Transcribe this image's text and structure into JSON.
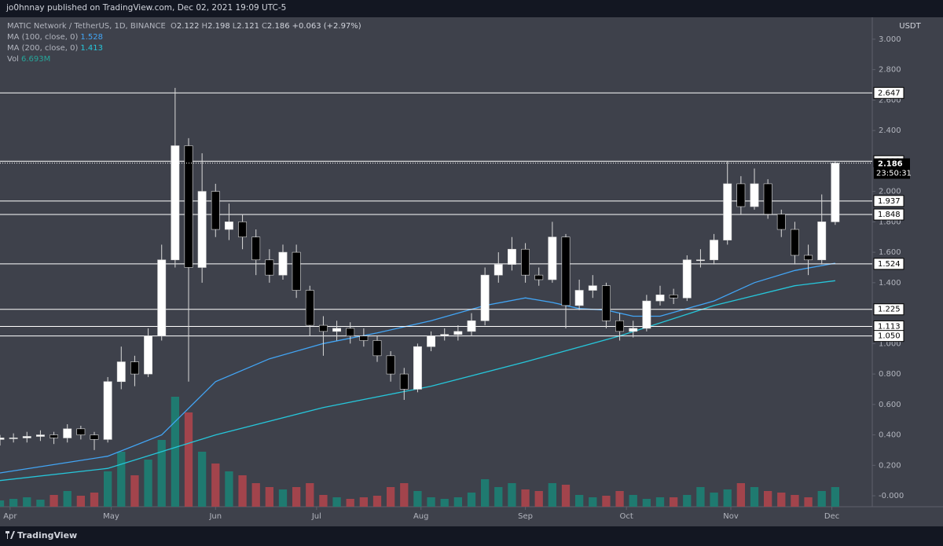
{
  "header": {
    "text": "jo0hnnay published on TradingView.com, Dec 02, 2021 19:09 UTC-5"
  },
  "legend": {
    "symbol": "MATIC Network / TetherUS, 1D, BINANCE",
    "ohlc": [
      {
        "key": "O",
        "value": "2.122"
      },
      {
        "key": "H",
        "value": "2.198"
      },
      {
        "key": "L",
        "value": "2.121"
      },
      {
        "key": "C",
        "value": "2.186"
      }
    ],
    "change": "+0.063 (+2.97%)",
    "indicators": [
      {
        "label": "MA (100, close, 0)",
        "value": "1.528",
        "color": "#42a5f5"
      },
      {
        "label": "MA (200, close, 0)",
        "value": "1.413",
        "color": "#26c6da"
      },
      {
        "label": "Vol",
        "value": "6.693M",
        "color": "#26a69a"
      }
    ]
  },
  "chart_data": {
    "type": "candlestick",
    "currency": "USDT",
    "x": [
      -3,
      1,
      5,
      9,
      13,
      17,
      21,
      25,
      29,
      33,
      37,
      41,
      45,
      49,
      53,
      57,
      61,
      65,
      69,
      73,
      77,
      81,
      85,
      89,
      93,
      97,
      101,
      105,
      109,
      113,
      117,
      121,
      125,
      129,
      133,
      137,
      141,
      145,
      149,
      153,
      157,
      161,
      165,
      169,
      173,
      177,
      181,
      185,
      189,
      193,
      197,
      201,
      205,
      209,
      213,
      217,
      221,
      225,
      229,
      233,
      237,
      241,
      245
    ],
    "open": [
      0.37,
      0.38,
      0.38,
      0.39,
      0.4,
      0.38,
      0.44,
      0.4,
      0.37,
      0.75,
      0.88,
      0.8,
      1.05,
      1.55,
      2.3,
      1.5,
      2.0,
      1.75,
      1.8,
      1.7,
      1.55,
      1.45,
      1.6,
      1.35,
      1.12,
      1.08,
      1.1,
      1.05,
      1.02,
      0.92,
      0.8,
      0.7,
      0.98,
      1.05,
      1.06,
      1.08,
      1.15,
      1.45,
      1.52,
      1.62,
      1.45,
      1.42,
      1.7,
      1.25,
      1.35,
      1.38,
      1.15,
      1.08,
      1.1,
      1.28,
      1.32,
      1.3,
      1.55,
      1.55,
      1.68,
      2.05,
      1.9,
      2.05,
      1.85,
      1.75,
      1.58,
      1.55,
      1.8
    ],
    "high": [
      0.4,
      0.41,
      0.42,
      0.43,
      0.42,
      0.47,
      0.46,
      0.42,
      0.78,
      0.98,
      0.92,
      1.1,
      1.65,
      2.68,
      2.35,
      2.25,
      2.05,
      1.92,
      1.85,
      1.75,
      1.62,
      1.65,
      1.65,
      1.38,
      1.18,
      1.15,
      1.14,
      1.1,
      1.05,
      0.95,
      0.84,
      1.0,
      1.08,
      1.1,
      1.12,
      1.2,
      1.5,
      1.6,
      1.7,
      1.66,
      1.5,
      1.8,
      1.72,
      1.42,
      1.45,
      1.4,
      1.2,
      1.15,
      1.32,
      1.38,
      1.36,
      1.58,
      1.62,
      1.72,
      2.2,
      2.1,
      2.15,
      2.08,
      1.88,
      1.8,
      1.65,
      1.98,
      2.198
    ],
    "low": [
      0.33,
      0.35,
      0.35,
      0.36,
      0.34,
      0.35,
      0.37,
      0.3,
      0.35,
      0.7,
      0.72,
      0.78,
      1.02,
      1.5,
      0.75,
      1.4,
      1.7,
      1.68,
      1.62,
      1.45,
      1.4,
      1.42,
      1.3,
      1.05,
      0.92,
      1.02,
      1.0,
      0.98,
      0.88,
      0.75,
      0.63,
      0.68,
      0.95,
      1.02,
      1.02,
      1.05,
      1.12,
      1.4,
      1.48,
      1.4,
      1.38,
      1.4,
      1.1,
      1.22,
      1.3,
      1.1,
      1.02,
      1.04,
      1.08,
      1.25,
      1.26,
      1.28,
      1.5,
      1.52,
      1.65,
      1.85,
      1.88,
      1.82,
      1.7,
      1.52,
      1.45,
      1.52,
      1.78
    ],
    "close": [
      0.38,
      0.38,
      0.39,
      0.4,
      0.38,
      0.44,
      0.4,
      0.37,
      0.75,
      0.88,
      0.8,
      1.05,
      1.55,
      2.3,
      1.5,
      2.0,
      1.75,
      1.8,
      1.7,
      1.55,
      1.45,
      1.6,
      1.35,
      1.12,
      1.08,
      1.1,
      1.05,
      1.02,
      0.92,
      0.8,
      0.7,
      0.98,
      1.05,
      1.06,
      1.08,
      1.15,
      1.45,
      1.52,
      1.62,
      1.45,
      1.42,
      1.7,
      1.25,
      1.35,
      1.38,
      1.15,
      1.08,
      1.1,
      1.28,
      1.32,
      1.3,
      1.55,
      1.55,
      1.68,
      2.05,
      1.9,
      2.05,
      1.85,
      1.75,
      1.58,
      1.55,
      1.8,
      2.186
    ],
    "volume": [
      8,
      10,
      12,
      9,
      15,
      20,
      14,
      18,
      45,
      70,
      40,
      60,
      85,
      140,
      120,
      70,
      55,
      45,
      40,
      30,
      25,
      22,
      25,
      30,
      15,
      12,
      10,
      12,
      14,
      25,
      30,
      20,
      12,
      10,
      12,
      18,
      35,
      25,
      30,
      22,
      20,
      30,
      28,
      15,
      12,
      14,
      20,
      15,
      10,
      12,
      12,
      15,
      25,
      18,
      22,
      30,
      25,
      20,
      18,
      15,
      12,
      20,
      25
    ],
    "up_color": "#ffffff",
    "down_color": "#000000",
    "volume_up_color": "#1f7a70",
    "volume_down_color": "#a2444c",
    "series": [
      {
        "name": "MA (100, close, 0)",
        "color": "#42a5f5",
        "x": [
          -3,
          29,
          45,
          61,
          77,
          93,
          109,
          125,
          141,
          153,
          161,
          169,
          177,
          185,
          193,
          209,
          221,
          233,
          245
        ],
        "values": [
          0.15,
          0.26,
          0.4,
          0.75,
          0.9,
          1.0,
          1.07,
          1.15,
          1.25,
          1.3,
          1.27,
          1.23,
          1.22,
          1.18,
          1.18,
          1.28,
          1.4,
          1.48,
          1.528
        ]
      },
      {
        "name": "MA (200, close, 0)",
        "color": "#26c6da",
        "x": [
          -3,
          29,
          61,
          93,
          125,
          153,
          181,
          209,
          233,
          245
        ],
        "values": [
          0.1,
          0.18,
          0.4,
          0.58,
          0.72,
          0.88,
          1.05,
          1.25,
          1.38,
          1.413
        ]
      }
    ],
    "levels": [
      {
        "value": 2.647,
        "label": "2.647"
      },
      {
        "value": 2.198,
        "label": "2.198"
      },
      {
        "value": 1.937,
        "label": "1.937"
      },
      {
        "value": 1.848,
        "label": "1.848"
      },
      {
        "value": 1.524,
        "label": "1.524"
      },
      {
        "value": 1.225,
        "label": "1.225"
      },
      {
        "value": 1.113,
        "label": "1.113"
      },
      {
        "value": 1.05,
        "label": "1.050"
      }
    ],
    "last_price": {
      "value": 2.186,
      "label": "2.186"
    },
    "countdown": "23:50:31",
    "xlim": [
      -3,
      256
    ],
    "ylim": [
      -0.072,
      3.144
    ],
    "xticks": [
      {
        "value": 0,
        "label": "Apr"
      },
      {
        "value": 30,
        "label": "May"
      },
      {
        "value": 61,
        "label": "Jun"
      },
      {
        "value": 91,
        "label": "Jul"
      },
      {
        "value": 122,
        "label": "Aug"
      },
      {
        "value": 153,
        "label": "Sep"
      },
      {
        "value": 183,
        "label": "Oct"
      },
      {
        "value": 214,
        "label": "Nov"
      },
      {
        "value": 244,
        "label": "Dec"
      }
    ],
    "yticks": [
      {
        "value": 3.0,
        "label": "3.000"
      },
      {
        "value": 2.8,
        "label": "2.800"
      },
      {
        "value": 2.6,
        "label": "2.600"
      },
      {
        "value": 2.4,
        "label": "2.400"
      },
      {
        "value": 2.0,
        "label": "2.000"
      },
      {
        "value": 1.8,
        "label": "1.800"
      },
      {
        "value": 1.6,
        "label": "1.600"
      },
      {
        "value": 1.4,
        "label": "1.400"
      },
      {
        "value": 1.0,
        "label": "1.000"
      },
      {
        "value": 0.8,
        "label": "0.800"
      },
      {
        "value": 0.6,
        "label": "0.600"
      },
      {
        "value": 0.4,
        "label": "0.400"
      },
      {
        "value": 0.2,
        "label": "0.200"
      },
      {
        "value": 0,
        "label": "-0.000"
      }
    ]
  },
  "footer": {
    "brand": "TradingView"
  }
}
